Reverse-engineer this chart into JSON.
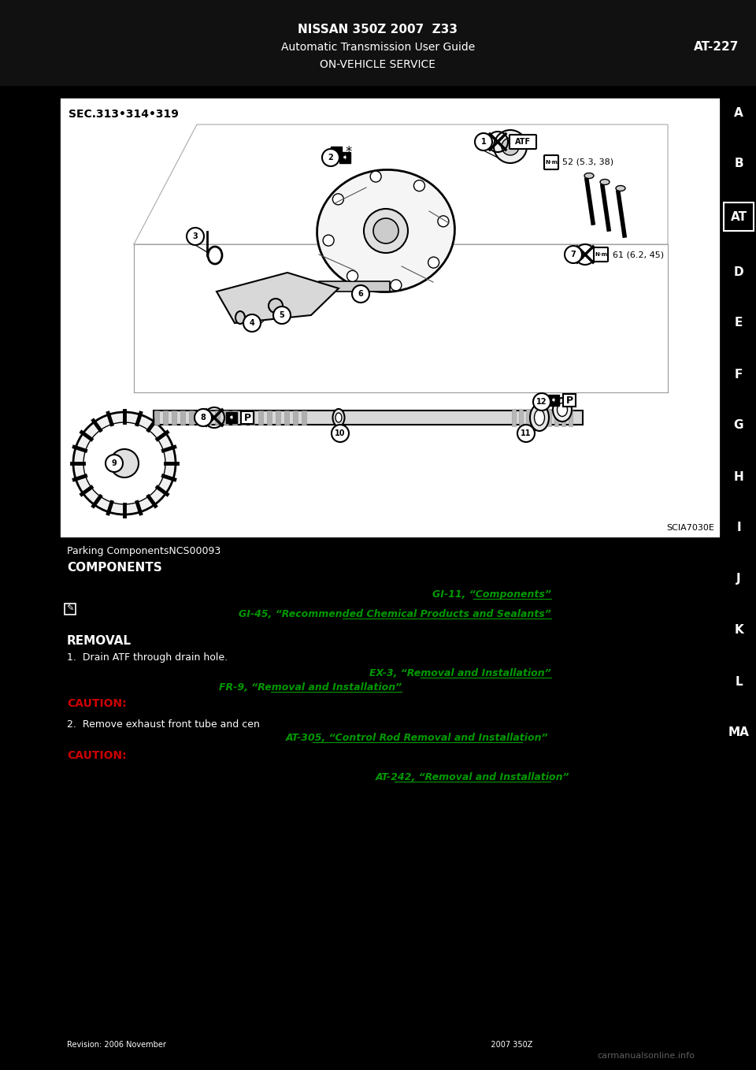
{
  "bg_color": "#000000",
  "diagram_bg": "#ffffff",
  "header_line1": "NISSAN 350Z 2007  Z33",
  "header_line2": "Automatic Transmission User Guide",
  "header_line3": "ON-VEHICLE SERVICE",
  "header_right": "AT-227",
  "sec_label": "SEC.313•314•319",
  "diagram_code": "SCIA7030E",
  "sidebar_letters": [
    "A",
    "B",
    "AT",
    "D",
    "E",
    "F",
    "G",
    "H",
    "I",
    "J",
    "K",
    "L",
    "MA"
  ],
  "sidebar_highlight": "AT",
  "torque_1": "52 (5.3, 38)",
  "torque_7": "61 (6.2, 45)",
  "green_links": [
    "GI-11, “Components”",
    "GI-45, “Recommended Chemical Products and Sealants”",
    "EX-3, “Removal and Installation”",
    "FR-9, “Removal and Installation”",
    "AT-305, “Control Rod Removal and Installation”",
    "AT-242, “Removal and Installation”"
  ],
  "caution_color": "#cc0000",
  "green_color": "#009900",
  "bottom_watermark": "carmanualsonline.info",
  "revision_text": "Revision: 2006 November                                                                                                                                    2007 350Z"
}
